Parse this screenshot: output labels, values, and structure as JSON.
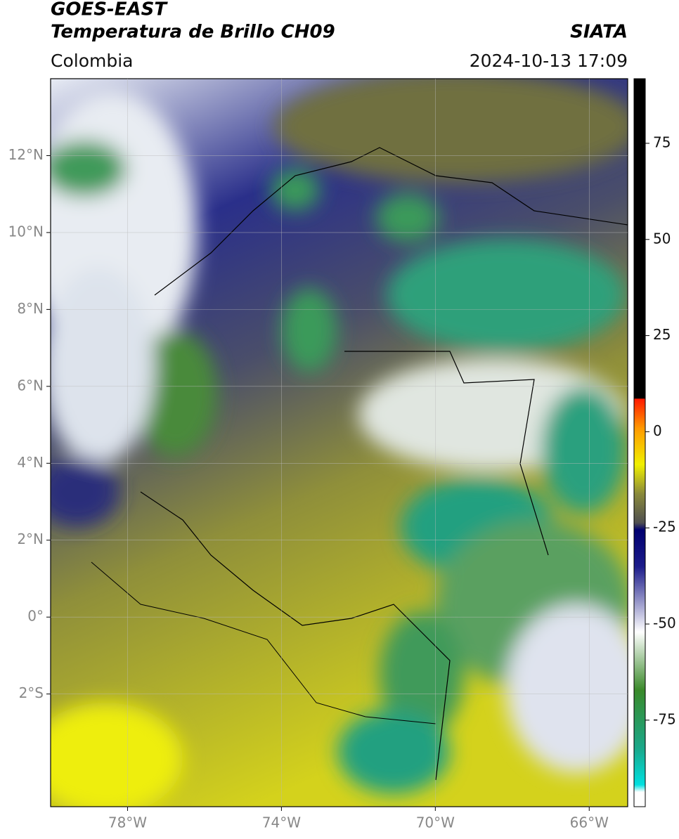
{
  "header": {
    "title": "GOES-EAST",
    "subtitle": "Temperatura de Brillo CH09",
    "source": "SIATA",
    "region": "Colombia",
    "datetime": "2024-10-13 17:09"
  },
  "map": {
    "xlim": [
      -80,
      -65
    ],
    "ylim": [
      -4.93,
      14
    ],
    "xticks": [
      {
        "value": -78,
        "label": "78°W"
      },
      {
        "value": -74,
        "label": "74°W"
      },
      {
        "value": -70,
        "label": "70°W"
      },
      {
        "value": -66,
        "label": "66°W"
      }
    ],
    "yticks": [
      {
        "value": 12,
        "label": "12°N"
      },
      {
        "value": 10,
        "label": "10°N"
      },
      {
        "value": 8,
        "label": "8°N"
      },
      {
        "value": 6,
        "label": "6°N"
      },
      {
        "value": 4,
        "label": "4°N"
      },
      {
        "value": 2,
        "label": "2°N"
      },
      {
        "value": 0,
        "label": "0°"
      },
      {
        "value": -2,
        "label": "2°S"
      }
    ],
    "grid": true
  },
  "colorbar": {
    "lim": [
      -97.5,
      91.8
    ],
    "ticks": [
      75,
      50,
      25,
      0,
      -25,
      -50,
      -75
    ]
  }
}
